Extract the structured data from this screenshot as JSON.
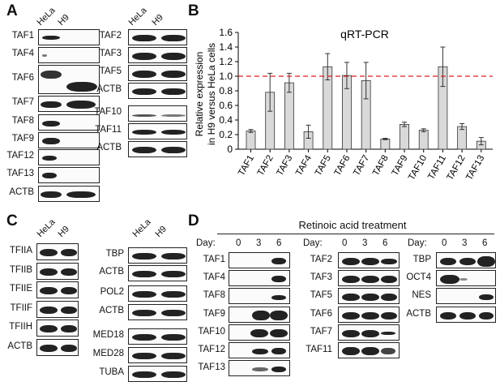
{
  "panels": {
    "A": {
      "letter": "A",
      "columns": [
        "HeLa",
        "H9"
      ],
      "blot_left": [
        "TAF1",
        "TAF4",
        "TAF6",
        "TAF7",
        "TAF8",
        "TAF9",
        "TAF12",
        "TAF13",
        "ACTB"
      ],
      "blot_right": [
        "TAF2",
        "TAF3",
        "TAF5",
        "ACTB",
        "TAF10",
        "TAF11",
        "ACTB"
      ]
    },
    "B": {
      "letter": "B"
    },
    "C": {
      "letter": "C",
      "columns": [
        "HeLa",
        "H9"
      ],
      "blot_left": [
        "TFIIA",
        "TFIIB",
        "TFIIE",
        "TFIIF",
        "TFIIH",
        "ACTB"
      ],
      "blot_right": [
        "TBP",
        "ACTB",
        "POL2",
        "ACTB",
        "MED18",
        "MED28",
        "TUBA"
      ]
    },
    "D": {
      "letter": "D",
      "title": "Retinoic acid treatment",
      "day_label": "Day:",
      "days": [
        "0",
        "3",
        "6"
      ],
      "blot_1": [
        "TAF1",
        "TAF4",
        "TAF8",
        "TAF9",
        "TAF10",
        "TAF12",
        "TAF13"
      ],
      "blot_2": [
        "TAF2",
        "TAF3",
        "TAF5",
        "TAF6",
        "TAF7",
        "TAF11"
      ],
      "blot_3": [
        "TBP",
        "OCT4",
        "NES",
        "ACTB"
      ]
    }
  },
  "chart_data": {
    "type": "bar",
    "title": "qRT-PCR",
    "ylabel": "Relative expression in H9 versus HeLa cells",
    "ylabel_lines": [
      "Relative expression",
      "in H9 versus HeLa cells"
    ],
    "xlabel": "",
    "ylim": [
      0,
      1.6
    ],
    "yticks": [
      "0",
      "0.2",
      "0.4",
      "0.6",
      "0.8",
      "1.0",
      "1.2",
      "1.4",
      "1.6"
    ],
    "reference_line": 1.0,
    "reference_color": "#d62020",
    "bar_color": "#d9d9d9",
    "categories": [
      "TAF1",
      "TAF2",
      "TAF3",
      "TAF4",
      "TAF5",
      "TAF6",
      "TAF7",
      "TAF8",
      "TAF9",
      "TAF10",
      "TAF11",
      "TAF12",
      "TAF13"
    ],
    "values": [
      0.25,
      0.78,
      0.91,
      0.24,
      1.13,
      1.01,
      0.94,
      0.14,
      0.34,
      0.26,
      1.13,
      0.31,
      0.11
    ],
    "errors": [
      0.02,
      0.26,
      0.13,
      0.09,
      0.18,
      0.18,
      0.25,
      0.01,
      0.03,
      0.02,
      0.27,
      0.04,
      0.05
    ]
  }
}
